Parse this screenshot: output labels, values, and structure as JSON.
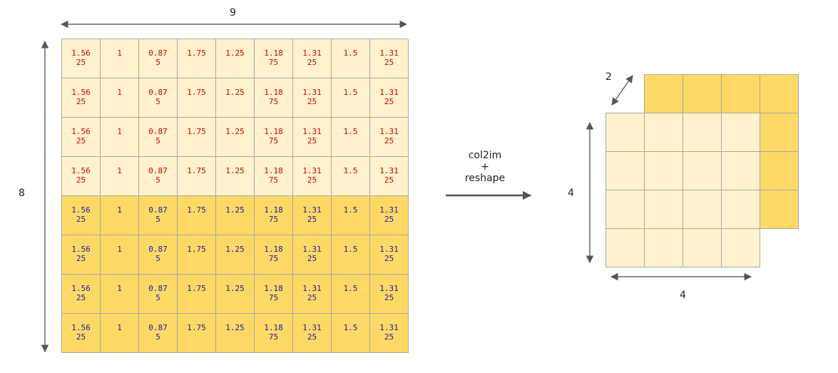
{
  "matrix": {
    "width_label": "9",
    "height_label": "8",
    "column_values": [
      "1.56\n25",
      "1",
      "0.87\n5",
      "1.75",
      "1.25",
      "1.18\n75",
      "1.31\n25",
      "1.5",
      "1.31\n25"
    ],
    "row_groups": [
      "light",
      "light",
      "light",
      "light",
      "dark",
      "dark",
      "dark",
      "dark"
    ],
    "colors": {
      "light_fill": "#fff2cc",
      "dark_fill": "#ffd966",
      "light_text": "#d00000",
      "dark_text": "#1a1aa6",
      "grid_line": "#a8a8a8"
    }
  },
  "operation": {
    "line1": "col2im",
    "line2": "+",
    "line3": "reshape"
  },
  "tensor": {
    "depth_label": "2",
    "height_label": "4",
    "width_label": "4",
    "colors": {
      "front_fill": "#fff2cc",
      "back_fill": "#ffd966"
    }
  }
}
